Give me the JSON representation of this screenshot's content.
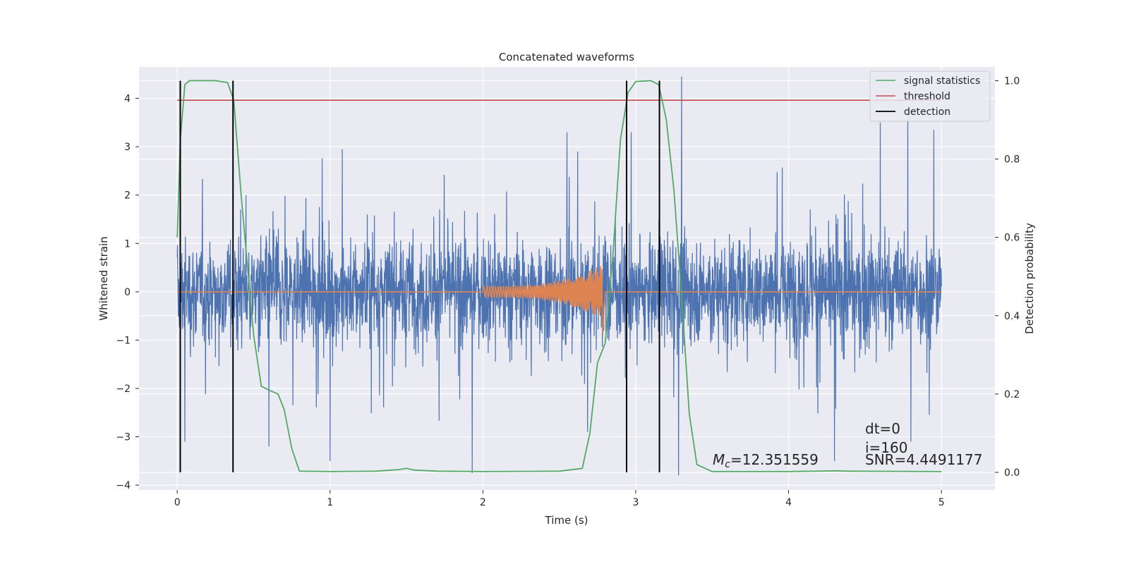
{
  "chart_data": {
    "type": "line",
    "title": "Concatenated waveforms",
    "xlabel": "Time (s)",
    "ylabel": "Whitened strain",
    "ylabel_right": "Detection probability",
    "xlim": [
      -0.25,
      5.35
    ],
    "ylim": [
      -4.1,
      4.65
    ],
    "ylim_right": [
      -0.045,
      1.035
    ],
    "x_ticks": [
      0,
      1,
      2,
      3,
      4,
      5
    ],
    "y_ticks": [
      -4,
      -3,
      -2,
      -1,
      0,
      1,
      2,
      3,
      4
    ],
    "y_ticks_right": [
      0.0,
      0.2,
      0.4,
      0.6,
      0.8,
      1.0
    ],
    "grid": true,
    "legend_position": "top-right",
    "colors": {
      "background": "#eaeaf2",
      "noise": "#4c72b0",
      "template": "#dd8452",
      "signal_statistics": "#55a868",
      "threshold": "#c44e52",
      "detection": "#000000"
    },
    "series": [
      {
        "id": "noise",
        "axis": "left",
        "description_visible": false,
        "x_range": [
          0,
          5
        ],
        "amplitude_typical": 1.2,
        "peaks": [
          {
            "x": 0.02,
            "y": -2.6
          },
          {
            "x": 0.05,
            "y": -3.1
          },
          {
            "x": 0.45,
            "y": 2.0
          },
          {
            "x": 0.6,
            "y": -3.2
          },
          {
            "x": 1.0,
            "y": -3.5
          },
          {
            "x": 1.08,
            "y": 2.95
          },
          {
            "x": 1.93,
            "y": -3.75
          },
          {
            "x": 2.55,
            "y": 3.3
          },
          {
            "x": 2.62,
            "y": 2.9
          },
          {
            "x": 3.3,
            "y": 4.45
          },
          {
            "x": 3.28,
            "y": -3.8
          },
          {
            "x": 4.3,
            "y": -3.5
          },
          {
            "x": 4.6,
            "y": 3.5
          },
          {
            "x": 4.78,
            "y": 3.7
          },
          {
            "x": 4.8,
            "y": -3.1
          },
          {
            "x": 4.95,
            "y": 3.35
          },
          {
            "x": 2.97,
            "y": 3.3
          }
        ]
      },
      {
        "id": "template",
        "axis": "left",
        "x_range": [
          0,
          5
        ],
        "chirp_start": 2.0,
        "chirp_end": 2.8,
        "start_amplitude": 0.12,
        "peak_amplitude": 0.6,
        "min_at_merger": -0.95
      },
      {
        "id": "signal_statistics",
        "name": "signal statistics",
        "axis": "right",
        "x": [
          0,
          0.02,
          0.05,
          0.08,
          0.15,
          0.25,
          0.33,
          0.37,
          0.42,
          0.5,
          0.55,
          0.6,
          0.66,
          0.7,
          0.75,
          0.8,
          1.0,
          1.3,
          1.45,
          1.5,
          1.55,
          1.7,
          2.0,
          2.5,
          2.65,
          2.7,
          2.75,
          2.8,
          2.85,
          2.9,
          2.95,
          3.0,
          3.1,
          3.15,
          3.2,
          3.25,
          3.3,
          3.35,
          3.4,
          3.5,
          4.0,
          4.3,
          4.4,
          5.0
        ],
        "y": [
          0.6,
          0.85,
          0.99,
          1.0,
          1.0,
          1.0,
          0.995,
          0.95,
          0.7,
          0.35,
          0.22,
          0.21,
          0.2,
          0.16,
          0.06,
          0.003,
          0.002,
          0.003,
          0.007,
          0.01,
          0.006,
          0.003,
          0.002,
          0.003,
          0.01,
          0.1,
          0.28,
          0.33,
          0.55,
          0.85,
          0.97,
          0.998,
          1.0,
          0.99,
          0.9,
          0.72,
          0.45,
          0.15,
          0.02,
          0.002,
          0.002,
          0.004,
          0.003,
          0.002
        ]
      },
      {
        "id": "threshold",
        "name": "threshold",
        "axis": "right",
        "x": [
          0,
          5
        ],
        "y": [
          0.95,
          0.95
        ]
      },
      {
        "id": "detection",
        "name": "detection",
        "axis": "right",
        "type": "vlines",
        "x": [
          0.02,
          0.365,
          2.94,
          3.155
        ],
        "y_range": [
          0.0,
          1.0
        ]
      }
    ],
    "legend": [
      {
        "label": "signal statistics",
        "series": "signal_statistics"
      },
      {
        "label": "threshold",
        "series": "threshold"
      },
      {
        "label": "detection",
        "series": "detection"
      }
    ],
    "annotations": {
      "mc": "=12.351559",
      "mc_symbol": "M",
      "mc_subscript": "c",
      "dt": "dt=0",
      "i": "i=160",
      "snr": "SNR=4.4491177"
    }
  }
}
